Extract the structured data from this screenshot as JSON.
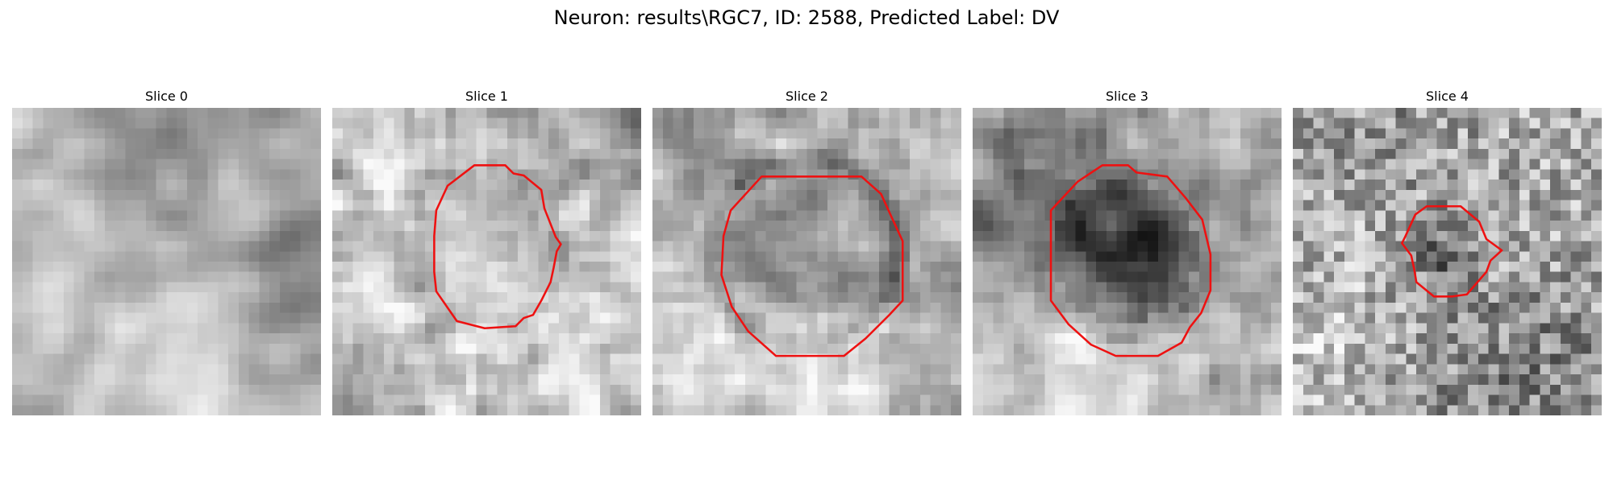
{
  "figure": {
    "title": "Neuron: results\\RGC7, ID: 2588, Predicted Label: DV"
  },
  "panels": [
    {
      "title": "Slice 0",
      "has_contour": false,
      "contour_color": "#ee1111"
    },
    {
      "title": "Slice 1",
      "has_contour": true,
      "contour_color": "#ee1111"
    },
    {
      "title": "Slice 2",
      "has_contour": true,
      "contour_color": "#ee1111"
    },
    {
      "title": "Slice 3",
      "has_contour": true,
      "contour_color": "#ee1111"
    },
    {
      "title": "Slice 4",
      "has_contour": true,
      "contour_color": "#ee1111"
    }
  ],
  "colors": {
    "colormap": "gray",
    "contour": "#ee1111"
  }
}
